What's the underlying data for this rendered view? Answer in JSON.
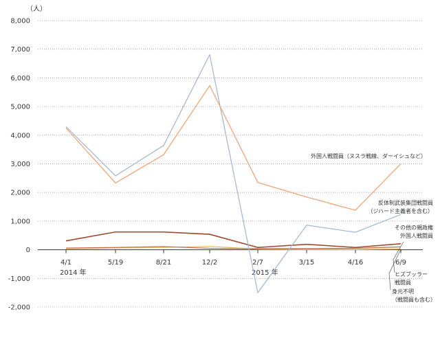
{
  "chart_data": {
    "type": "line",
    "unit_label": "（人）",
    "categories": [
      "4/1",
      "5/19",
      "8/21",
      "12/2",
      "2/7",
      "3/15",
      "4/16",
      "6/9"
    ],
    "year_labels": [
      {
        "category": "4/1",
        "text": "2014 年"
      },
      {
        "category": "2/7",
        "text": "2015 年"
      }
    ],
    "ylim": [
      -2000,
      8000
    ],
    "yticks": [
      "8,000",
      "7,000",
      "6,000",
      "5,000",
      "4,000",
      "3,000",
      "2,000",
      "1,000",
      "0",
      "-1,000",
      "-2,000"
    ],
    "ytick_values": [
      8000,
      7000,
      6000,
      5000,
      4000,
      3000,
      2000,
      1000,
      0,
      -1000,
      -2000
    ],
    "grid": "horizontal dotted",
    "series": [
      {
        "name": "外国人戦闘員（ヌスラ戦線、ダーイシュなど）",
        "color": "#f0a477",
        "values": [
          4250,
          2330,
          3320,
          5730,
          2350,
          1840,
          1380,
          3000
        ]
      },
      {
        "name": "反体制武装集団戦闘員（ジハード主義者を含む）",
        "color": "#a6b8d4",
        "values": [
          4300,
          2580,
          3640,
          6810,
          -1500,
          860,
          610,
          1230
        ]
      },
      {
        "name": "その他の親政権外国人戦闘員",
        "color": "#a0482a",
        "values": [
          310,
          620,
          620,
          540,
          80,
          190,
          80,
          210
        ]
      },
      {
        "name": "ヒズブッラー戦闘員",
        "color": "#c57050",
        "values": [
          60,
          80,
          110,
          50,
          40,
          40,
          50,
          100
        ]
      },
      {
        "name": "身元不明（戦闘員も含む）",
        "color": "#ecc070",
        "values": [
          30,
          60,
          80,
          120,
          20,
          10,
          10,
          30
        ]
      }
    ],
    "series_label_lines": [
      [
        "外国人戦闘員（ヌスラ戦線、ダーイシュなど）"
      ],
      [
        "反体制武装集団戦闘員",
        "（ジハード主義者を含む）"
      ],
      [
        "その他の親政権",
        "外国人戦闘員"
      ],
      [
        "ヒズブッラー",
        "戦闘員"
      ],
      [
        "身元不明",
        "（戦闘員も含む）"
      ]
    ]
  }
}
